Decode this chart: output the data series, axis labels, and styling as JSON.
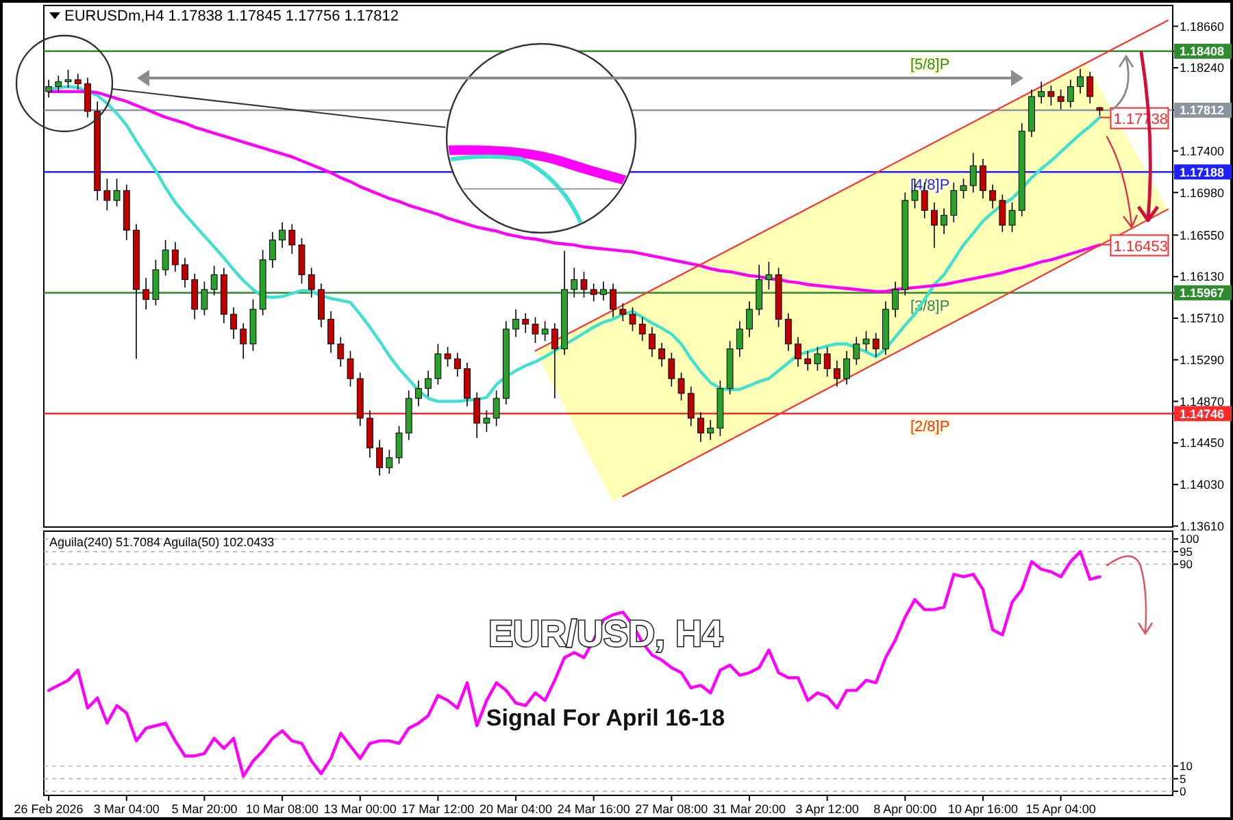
{
  "chart_data": [
    {
      "type": "candlestick",
      "title": "EURUSDm,H4  1.17838 1.17845 1.17756 1.17812",
      "categories": [
        null,
        null,
        null,
        null,
        null,
        null,
        null,
        null,
        null,
        null,
        null,
        null,
        null,
        null,
        null,
        null,
        null,
        null,
        null,
        null,
        null,
        null,
        null,
        null,
        null,
        null,
        null,
        null,
        null,
        null,
        null,
        null,
        null,
        null,
        null,
        null,
        null,
        null,
        null,
        null,
        null,
        null,
        null,
        null,
        null,
        null,
        null,
        null,
        null,
        null,
        null,
        null,
        null,
        null,
        null,
        null,
        null,
        null,
        null,
        null,
        null,
        null,
        null,
        null,
        null,
        null,
        null,
        null,
        null,
        null,
        null,
        null,
        null,
        null,
        null,
        null,
        null,
        null,
        null,
        null,
        null,
        null,
        null,
        null,
        null,
        null,
        null,
        null,
        null,
        null,
        null,
        null,
        null,
        null,
        null,
        null,
        null,
        null,
        null,
        null,
        null,
        null,
        null,
        null,
        null,
        null,
        null,
        null,
        null,
        null,
        null,
        null,
        null,
        null,
        null,
        null
      ],
      "ohlc": [
        [
          1.18,
          1.1812,
          1.1794,
          1.1805
        ],
        [
          1.1805,
          1.1816,
          1.1799,
          1.181
        ],
        [
          1.181,
          1.1822,
          1.1804,
          1.1812
        ],
        [
          1.1812,
          1.1818,
          1.1802,
          1.1808
        ],
        [
          1.1808,
          1.1814,
          1.1774,
          1.178
        ],
        [
          1.178,
          1.179,
          1.169,
          1.17
        ],
        [
          1.17,
          1.1712,
          1.168,
          1.169
        ],
        [
          1.169,
          1.1712,
          1.1684,
          1.17
        ],
        [
          1.17,
          1.1706,
          1.165,
          1.166
        ],
        [
          1.166,
          1.1666,
          1.153,
          1.16
        ],
        [
          1.16,
          1.1612,
          1.158,
          1.159
        ],
        [
          1.159,
          1.163,
          1.1584,
          1.162
        ],
        [
          1.162,
          1.165,
          1.1614,
          1.164
        ],
        [
          1.164,
          1.1648,
          1.1618,
          1.1625
        ],
        [
          1.1625,
          1.1632,
          1.1602,
          1.161
        ],
        [
          1.161,
          1.1616,
          1.157,
          1.158
        ],
        [
          1.158,
          1.1608,
          1.1574,
          1.16
        ],
        [
          1.16,
          1.1624,
          1.1594,
          1.1615
        ],
        [
          1.1615,
          1.1622,
          1.1566,
          1.1575
        ],
        [
          1.1575,
          1.1582,
          1.155,
          1.156
        ],
        [
          1.156,
          1.1566,
          1.153,
          1.1545
        ],
        [
          1.1545,
          1.159,
          1.1538,
          1.158
        ],
        [
          1.158,
          1.164,
          1.1574,
          1.163
        ],
        [
          1.163,
          1.1658,
          1.1622,
          1.165
        ],
        [
          1.165,
          1.1668,
          1.1642,
          1.166
        ],
        [
          1.166,
          1.1666,
          1.1636,
          1.1645
        ],
        [
          1.1645,
          1.1652,
          1.1606,
          1.1615
        ],
        [
          1.1615,
          1.1622,
          1.1592,
          1.16
        ],
        [
          1.16,
          1.1606,
          1.1562,
          1.157
        ],
        [
          1.157,
          1.1578,
          1.1536,
          1.1545
        ],
        [
          1.1545,
          1.1552,
          1.1522,
          1.153
        ],
        [
          1.153,
          1.1538,
          1.1502,
          1.151
        ],
        [
          1.151,
          1.1516,
          1.1462,
          1.147
        ],
        [
          1.147,
          1.1478,
          1.143,
          1.144
        ],
        [
          1.144,
          1.1448,
          1.1412,
          1.142
        ],
        [
          1.142,
          1.1438,
          1.1414,
          1.143
        ],
        [
          1.143,
          1.1462,
          1.1424,
          1.1455
        ],
        [
          1.1455,
          1.1498,
          1.1448,
          1.149
        ],
        [
          1.149,
          1.1508,
          1.1482,
          1.15
        ],
        [
          1.15,
          1.1518,
          1.1492,
          1.151
        ],
        [
          1.151,
          1.1545,
          1.1504,
          1.1535
        ],
        [
          1.1535,
          1.1542,
          1.1522,
          1.153
        ],
        [
          1.153,
          1.1536,
          1.1512,
          1.152
        ],
        [
          1.152,
          1.1526,
          1.1482,
          1.149
        ],
        [
          1.149,
          1.1496,
          1.145,
          1.1465
        ],
        [
          1.1465,
          1.1478,
          1.1456,
          1.147
        ],
        [
          1.147,
          1.1498,
          1.1462,
          1.149
        ],
        [
          1.149,
          1.1568,
          1.1484,
          1.156
        ],
        [
          1.156,
          1.158,
          1.1552,
          1.157
        ],
        [
          1.157,
          1.1576,
          1.1556,
          1.1565
        ],
        [
          1.1565,
          1.1572,
          1.1546,
          1.1555
        ],
        [
          1.1555,
          1.1568,
          1.1548,
          1.156
        ],
        [
          1.156,
          1.1566,
          1.149,
          1.154
        ],
        [
          1.154,
          1.1639,
          1.1534,
          1.16
        ],
        [
          1.16,
          1.1622,
          1.1592,
          1.161
        ],
        [
          1.161,
          1.1618,
          1.1592,
          1.16
        ],
        [
          1.16,
          1.1606,
          1.1588,
          1.1595
        ],
        [
          1.1595,
          1.1608,
          1.1589,
          1.16
        ],
        [
          1.16,
          1.1606,
          1.1572,
          1.158
        ],
        [
          1.158,
          1.1586,
          1.1568,
          1.1575
        ],
        [
          1.1575,
          1.1582,
          1.1558,
          1.1565
        ],
        [
          1.1565,
          1.1572,
          1.1548,
          1.1555
        ],
        [
          1.1555,
          1.1562,
          1.1532,
          1.154
        ],
        [
          1.154,
          1.1546,
          1.1522,
          1.153
        ],
        [
          1.153,
          1.1536,
          1.1502,
          1.151
        ],
        [
          1.151,
          1.1516,
          1.1488,
          1.1495
        ],
        [
          1.1495,
          1.1502,
          1.1462,
          1.147
        ],
        [
          1.147,
          1.1476,
          1.1446,
          1.1455
        ],
        [
          1.1455,
          1.1468,
          1.1448,
          1.146
        ],
        [
          1.146,
          1.1508,
          1.1452,
          1.15
        ],
        [
          1.15,
          1.1548,
          1.1494,
          1.154
        ],
        [
          1.154,
          1.1568,
          1.1532,
          1.156
        ],
        [
          1.156,
          1.1588,
          1.1552,
          1.158
        ],
        [
          1.158,
          1.1625,
          1.1574,
          1.161
        ],
        [
          1.161,
          1.1628,
          1.16,
          1.1615
        ],
        [
          1.1615,
          1.1622,
          1.1562,
          1.157
        ],
        [
          1.157,
          1.1576,
          1.1538,
          1.1545
        ],
        [
          1.1545,
          1.1552,
          1.1522,
          1.153
        ],
        [
          1.153,
          1.1538,
          1.1518,
          1.1525
        ],
        [
          1.1525,
          1.1542,
          1.1518,
          1.1535
        ],
        [
          1.1535,
          1.1542,
          1.1512,
          1.152
        ],
        [
          1.152,
          1.1528,
          1.1502,
          1.151
        ],
        [
          1.151,
          1.1538,
          1.1504,
          1.153
        ],
        [
          1.153,
          1.1552,
          1.1524,
          1.1545
        ],
        [
          1.1545,
          1.1558,
          1.1538,
          1.155
        ],
        [
          1.155,
          1.1556,
          1.1532,
          1.154
        ],
        [
          1.154,
          1.1588,
          1.1534,
          1.158
        ],
        [
          1.158,
          1.1608,
          1.1572,
          1.16
        ],
        [
          1.16,
          1.1698,
          1.1594,
          1.169
        ],
        [
          1.169,
          1.1712,
          1.1682,
          1.17
        ],
        [
          1.17,
          1.1708,
          1.1672,
          1.168
        ],
        [
          1.168,
          1.1688,
          1.1642,
          1.1665
        ],
        [
          1.1665,
          1.1682,
          1.1656,
          1.1675
        ],
        [
          1.1675,
          1.1708,
          1.1668,
          1.17
        ],
        [
          1.17,
          1.1712,
          1.1692,
          1.1705
        ],
        [
          1.1705,
          1.1738,
          1.1698,
          1.1725
        ],
        [
          1.1725,
          1.1732,
          1.1692,
          1.17
        ],
        [
          1.17,
          1.1706,
          1.1682,
          1.169
        ],
        [
          1.169,
          1.1696,
          1.1658,
          1.1665
        ],
        [
          1.1665,
          1.1688,
          1.1658,
          1.168
        ],
        [
          1.168,
          1.1768,
          1.1674,
          1.176
        ],
        [
          1.176,
          1.1802,
          1.1754,
          1.1795
        ],
        [
          1.1795,
          1.181,
          1.1788,
          1.18
        ],
        [
          1.18,
          1.1806,
          1.1786,
          1.1795
        ],
        [
          1.1795,
          1.1802,
          1.1782,
          1.179
        ],
        [
          1.179,
          1.1812,
          1.1784,
          1.1805
        ],
        [
          1.1805,
          1.1823,
          1.1798,
          1.1815
        ],
        [
          1.1815,
          1.182,
          1.1788,
          1.1795
        ],
        [
          1.17838,
          1.17845,
          1.17756,
          1.17812
        ],
        null,
        null,
        null,
        null,
        null,
        null,
        null
      ],
      "colors": [
        "#2ca02c",
        "#2ca02c",
        "#2ca02c",
        "#c00000",
        "#c00000",
        "#c00000",
        "#c00000",
        "#2ca02c",
        "#c00000",
        "#c00000",
        "#c00000",
        "#2ca02c",
        "#2ca02c",
        "#c00000",
        "#c00000",
        "#c00000",
        "#2ca02c",
        "#2ca02c",
        "#c00000",
        "#c00000",
        "#c00000",
        "#2ca02c",
        "#2ca02c",
        "#2ca02c",
        "#2ca02c",
        "#c00000",
        "#c00000",
        "#c00000",
        "#c00000",
        "#c00000",
        "#c00000",
        "#c00000",
        "#c00000",
        "#c00000",
        "#c00000",
        "#2ca02c",
        "#2ca02c",
        "#2ca02c",
        "#2ca02c",
        "#2ca02c",
        "#2ca02c",
        "#c00000",
        "#c00000",
        "#c00000",
        "#c00000",
        "#2ca02c",
        "#2ca02c",
        "#2ca02c",
        "#2ca02c",
        "#c00000",
        "#c00000",
        "#2ca02c",
        "#c00000",
        "#2ca02c",
        "#2ca02c",
        "#c00000",
        "#c00000",
        "#2ca02c",
        "#c00000",
        "#c00000",
        "#c00000",
        "#c00000",
        "#c00000",
        "#c00000",
        "#c00000",
        "#c00000",
        "#c00000",
        "#c00000",
        "#2ca02c",
        "#2ca02c",
        "#2ca02c",
        "#2ca02c",
        "#2ca02c",
        "#2ca02c",
        "#2ca02c",
        "#c00000",
        "#c00000",
        "#c00000",
        "#c00000",
        "#2ca02c",
        "#c00000",
        "#c00000",
        "#2ca02c",
        "#2ca02c",
        "#2ca02c",
        "#c00000",
        "#2ca02c",
        "#2ca02c",
        "#2ca02c",
        "#2ca02c",
        "#c00000",
        "#c00000",
        "#2ca02c",
        "#2ca02c",
        "#2ca02c",
        "#2ca02c",
        "#c00000",
        "#c00000",
        "#c00000",
        "#2ca02c",
        "#2ca02c",
        "#2ca02c",
        "#2ca02c",
        "#c00000",
        "#c00000",
        "#2ca02c",
        "#2ca02c",
        "#c00000",
        "#c00000",
        null,
        null,
        null,
        null,
        null,
        null,
        null
      ],
      "series": [
        {
          "type": "line",
          "color": "#40e0d0",
          "values": [
            1.1802,
            1.1804,
            1.1805,
            1.1804,
            1.18,
            1.1796,
            1.1788,
            1.1778,
            1.1766,
            1.175,
            1.1735,
            1.172,
            1.1703,
            1.1688,
            1.1676,
            1.1665,
            1.1654,
            1.1643,
            1.1632,
            1.162,
            1.1609,
            1.16,
            1.1593,
            1.1592,
            1.1593,
            1.1596,
            1.1599,
            1.1598,
            1.1594,
            1.1591,
            1.1589,
            1.1587,
            1.1575,
            1.1562,
            1.1548,
            1.1533,
            1.152,
            1.1509,
            1.1498,
            1.149,
            1.1487,
            1.1487,
            1.1487,
            1.1488,
            1.1489,
            1.1491,
            1.1504,
            1.1512,
            1.1518,
            1.1523,
            1.1527,
            1.1532,
            1.1538,
            1.1544,
            1.155,
            1.1556,
            1.1562,
            1.1567,
            1.157,
            1.1575,
            1.1578,
            1.1572,
            1.1566,
            1.1561,
            1.1555,
            1.1545,
            1.153,
            1.1517,
            1.1506,
            1.15,
            1.1499,
            1.1499,
            1.1503,
            1.1507,
            1.151,
            1.1518,
            1.1526,
            1.1534,
            1.1537,
            1.154,
            1.1543,
            1.1545,
            1.1545,
            1.1541,
            1.1537,
            1.1532,
            1.154,
            1.1552,
            1.1564,
            1.1575,
            1.159,
            1.1605,
            1.1615,
            1.163,
            1.1645,
            1.1657,
            1.1669,
            1.1678,
            1.1686,
            1.1692,
            1.1702,
            1.1713,
            1.1722,
            1.173,
            1.1739,
            1.1748,
            1.1757,
            1.1765,
            1.1774,
            null,
            null,
            null,
            null,
            null,
            null,
            null
          ]
        },
        {
          "type": "line",
          "color": "#ff00ff",
          "values": [
            1.18,
            1.18,
            1.18,
            1.18,
            1.18,
            1.1799,
            1.1796,
            1.1793,
            1.179,
            1.1786,
            1.1782,
            1.1778,
            1.1774,
            1.1771,
            1.1768,
            1.1764,
            1.1761,
            1.1758,
            1.1755,
            1.1752,
            1.1749,
            1.1746,
            1.1743,
            1.174,
            1.1737,
            1.1734,
            1.173,
            1.1726,
            1.1722,
            1.1718,
            1.1713,
            1.1709,
            1.1704,
            1.17,
            1.1696,
            1.1692,
            1.1689,
            1.1685,
            1.1682,
            1.1679,
            1.1676,
            1.1672,
            1.1669,
            1.1666,
            1.1663,
            1.1661,
            1.1659,
            1.1656,
            1.1654,
            1.1652,
            1.1651,
            1.1649,
            1.1647,
            1.1646,
            1.1645,
            1.1643,
            1.1642,
            1.1641,
            1.164,
            1.1639,
            1.1638,
            1.1636,
            1.1634,
            1.1632,
            1.163,
            1.1628,
            1.1626,
            1.1624,
            1.1621,
            1.1619,
            1.1618,
            1.1616,
            1.1614,
            1.1613,
            1.1611,
            1.161,
            1.1608,
            1.1607,
            1.1605,
            1.1604,
            1.1603,
            1.1602,
            1.1601,
            1.16,
            1.1599,
            1.1598,
            1.1598,
            1.16,
            1.1601,
            1.1602,
            1.1603,
            1.1604,
            1.1605,
            1.1607,
            1.1609,
            1.1611,
            1.1613,
            1.1615,
            1.1617,
            1.162,
            1.1622,
            1.1625,
            1.1628,
            1.163,
            1.1633,
            1.1636,
            1.1639,
            1.1642,
            1.1645,
            null,
            null,
            null,
            null,
            null,
            null,
            null
          ]
        },
        {
          "type": "line",
          "color": "#ff3030",
          "values": [
            null,
            null,
            null,
            null,
            null,
            null,
            null,
            null,
            null,
            null,
            null,
            null,
            null,
            null,
            null,
            null,
            null,
            null,
            null,
            null,
            null,
            null,
            null,
            null,
            null,
            null,
            null,
            null,
            null,
            null,
            null,
            null,
            null,
            null,
            null,
            null,
            null,
            null,
            null,
            null,
            null,
            null,
            null,
            null,
            null,
            null,
            null,
            null,
            null,
            null,
            1.1538,
            null,
            null,
            null,
            null,
            null,
            null,
            null,
            null,
            null,
            null,
            null,
            null,
            null,
            null,
            null,
            null,
            null,
            null,
            null,
            null,
            null,
            null,
            null,
            null,
            null,
            null,
            null,
            null,
            null,
            null,
            null,
            null,
            null,
            null,
            null,
            null,
            null,
            null,
            null,
            null,
            null,
            null,
            null,
            null,
            null,
            null,
            null,
            null,
            null,
            null,
            null,
            null,
            null,
            null,
            null,
            null,
            null,
            null,
            null,
            null,
            null,
            null,
            null,
            null,
            1.1872
          ]
        },
        {
          "type": "line",
          "color": "#ff3030",
          "values": [
            null,
            null,
            null,
            null,
            null,
            null,
            null,
            null,
            null,
            null,
            null,
            null,
            null,
            null,
            null,
            null,
            null,
            null,
            null,
            null,
            null,
            null,
            null,
            null,
            null,
            null,
            null,
            null,
            null,
            null,
            null,
            null,
            null,
            null,
            null,
            null,
            null,
            null,
            null,
            null,
            null,
            null,
            null,
            null,
            null,
            null,
            null,
            null,
            null,
            null,
            null,
            null,
            null,
            null,
            null,
            null,
            null,
            null,
            null,
            1.1391,
            null,
            null,
            null,
            null,
            null,
            null,
            null,
            null,
            null,
            null,
            null,
            null,
            null,
            null,
            null,
            null,
            null,
            null,
            null,
            null,
            null,
            null,
            null,
            null,
            null,
            null,
            null,
            null,
            null,
            null,
            null,
            null,
            null,
            null,
            null,
            null,
            null,
            null,
            null,
            null,
            null,
            null,
            null,
            null,
            null,
            null,
            null,
            null,
            null,
            null,
            null,
            null,
            null,
            null,
            null,
            1.1681
          ]
        }
      ],
      "ylim": [
        1.136,
        1.1887
      ],
      "yticks": [
        {
          "value": 1.1866,
          "label": "1.18660"
        },
        {
          "value": 1.18408,
          "label": "1.18408"
        },
        {
          "value": 1.1824,
          "label": "1.18240"
        },
        {
          "value": 1.17812,
          "label": "1.17812"
        },
        {
          "value": 1.174,
          "label": "1.17400"
        },
        {
          "value": 1.17188,
          "label": "1.17188"
        },
        {
          "value": 1.1698,
          "label": "1.16980"
        },
        {
          "value": 1.1655,
          "label": "1.16550"
        },
        {
          "value": 1.1613,
          "label": "1.16130"
        },
        {
          "value": 1.15967,
          "label": "1.15967"
        },
        {
          "value": 1.1571,
          "label": "1.15710"
        },
        {
          "value": 1.1529,
          "label": "1.15290"
        },
        {
          "value": 1.1487,
          "label": "1.14870"
        },
        {
          "value": 1.14746,
          "label": "1.14746"
        },
        {
          "value": 1.1445,
          "label": "1.14450"
        },
        {
          "value": 1.1403,
          "label": "1.14030"
        },
        {
          "value": 1.1361,
          "label": "1.13610"
        }
      ],
      "tick_labels": "y",
      "ref_lines": [
        {
          "axis": "y",
          "value": 1.18408,
          "label": "[5/8]P",
          "color": "#2e8b2e"
        },
        {
          "axis": "y",
          "value": 1.17812,
          "color": "#8a949e"
        },
        {
          "axis": "y",
          "value": 1.17188,
          "label": "[4/8]P",
          "color": "#2020ff"
        },
        {
          "axis": "y",
          "value": 1.15967,
          "label": "[3/8]P",
          "color": "#2e8b2e"
        },
        {
          "axis": "y",
          "value": 1.14746,
          "label": "[2/8]P",
          "color": "#ff2a2a"
        }
      ],
      "annotations": [
        {
          "text": "1.17738",
          "y": 1.17738
        },
        {
          "text": "1.16453",
          "y": 1.16453
        }
      ]
    },
    {
      "type": "line",
      "title": "Aguila(240) 51.7084  Aguila(50) 102.0433",
      "categories": [
        "26 Feb 2026",
        null,
        null,
        null,
        null,
        null,
        null,
        null,
        "3 Mar 04:00",
        null,
        null,
        null,
        null,
        null,
        null,
        null,
        "5 Mar 20:00",
        null,
        null,
        null,
        null,
        null,
        null,
        null,
        "10 Mar 08:00",
        null,
        null,
        null,
        null,
        null,
        null,
        null,
        "13 Mar 00:00",
        null,
        null,
        null,
        null,
        null,
        null,
        null,
        "17 Mar 12:00",
        null,
        null,
        null,
        null,
        null,
        null,
        null,
        "20 Mar 04:00",
        null,
        null,
        null,
        null,
        null,
        null,
        null,
        "24 Mar 16:00",
        null,
        null,
        null,
        null,
        null,
        null,
        null,
        "27 Mar 08:00",
        null,
        null,
        null,
        null,
        null,
        null,
        null,
        "31 Mar 20:00",
        null,
        null,
        null,
        null,
        null,
        null,
        null,
        "3 Apr 12:00",
        null,
        null,
        null,
        null,
        null,
        null,
        null,
        "8 Apr 00:00",
        null,
        null,
        null,
        null,
        null,
        null,
        null,
        "10 Apr 16:00",
        null,
        null,
        null,
        null,
        null,
        null,
        null,
        "15 Apr 04:00",
        null,
        null,
        null,
        null,
        null,
        null,
        null,
        null,
        null,
        null,
        null
      ],
      "series": [
        {
          "color": "#ff00ff",
          "values": [
            40,
            42,
            44,
            48,
            33,
            37,
            27,
            34,
            31,
            20,
            25,
            26,
            27,
            20,
            14,
            14,
            15,
            21,
            17,
            21,
            6,
            12,
            16,
            21,
            24,
            20,
            19,
            12,
            7,
            13,
            23,
            18,
            13,
            19,
            20,
            20,
            19,
            25,
            27,
            30,
            38,
            36,
            33,
            43,
            26,
            36,
            43,
            40,
            35,
            34,
            39,
            36,
            44,
            53,
            55,
            53,
            60,
            68,
            70,
            71,
            66,
            59,
            54,
            52,
            49,
            47,
            41,
            42,
            39,
            48,
            50,
            46,
            47,
            49,
            56,
            47,
            45,
            45,
            36,
            39,
            37.5,
            33,
            40,
            40,
            44,
            43,
            53,
            60,
            69,
            76,
            72,
            72,
            73,
            86,
            85,
            86,
            80,
            64,
            62,
            75,
            80,
            91,
            88,
            87,
            85,
            91,
            95,
            84,
            85,
            null,
            null,
            null,
            null,
            null,
            null,
            null
          ]
        }
      ],
      "ylim": [
        -1.6,
        103.1
      ],
      "yticks": [
        100,
        95,
        90,
        10,
        5,
        0
      ],
      "grid": "y",
      "annotations": [
        "EUR/USD, H4",
        "Signal For April 16-18"
      ]
    }
  ]
}
